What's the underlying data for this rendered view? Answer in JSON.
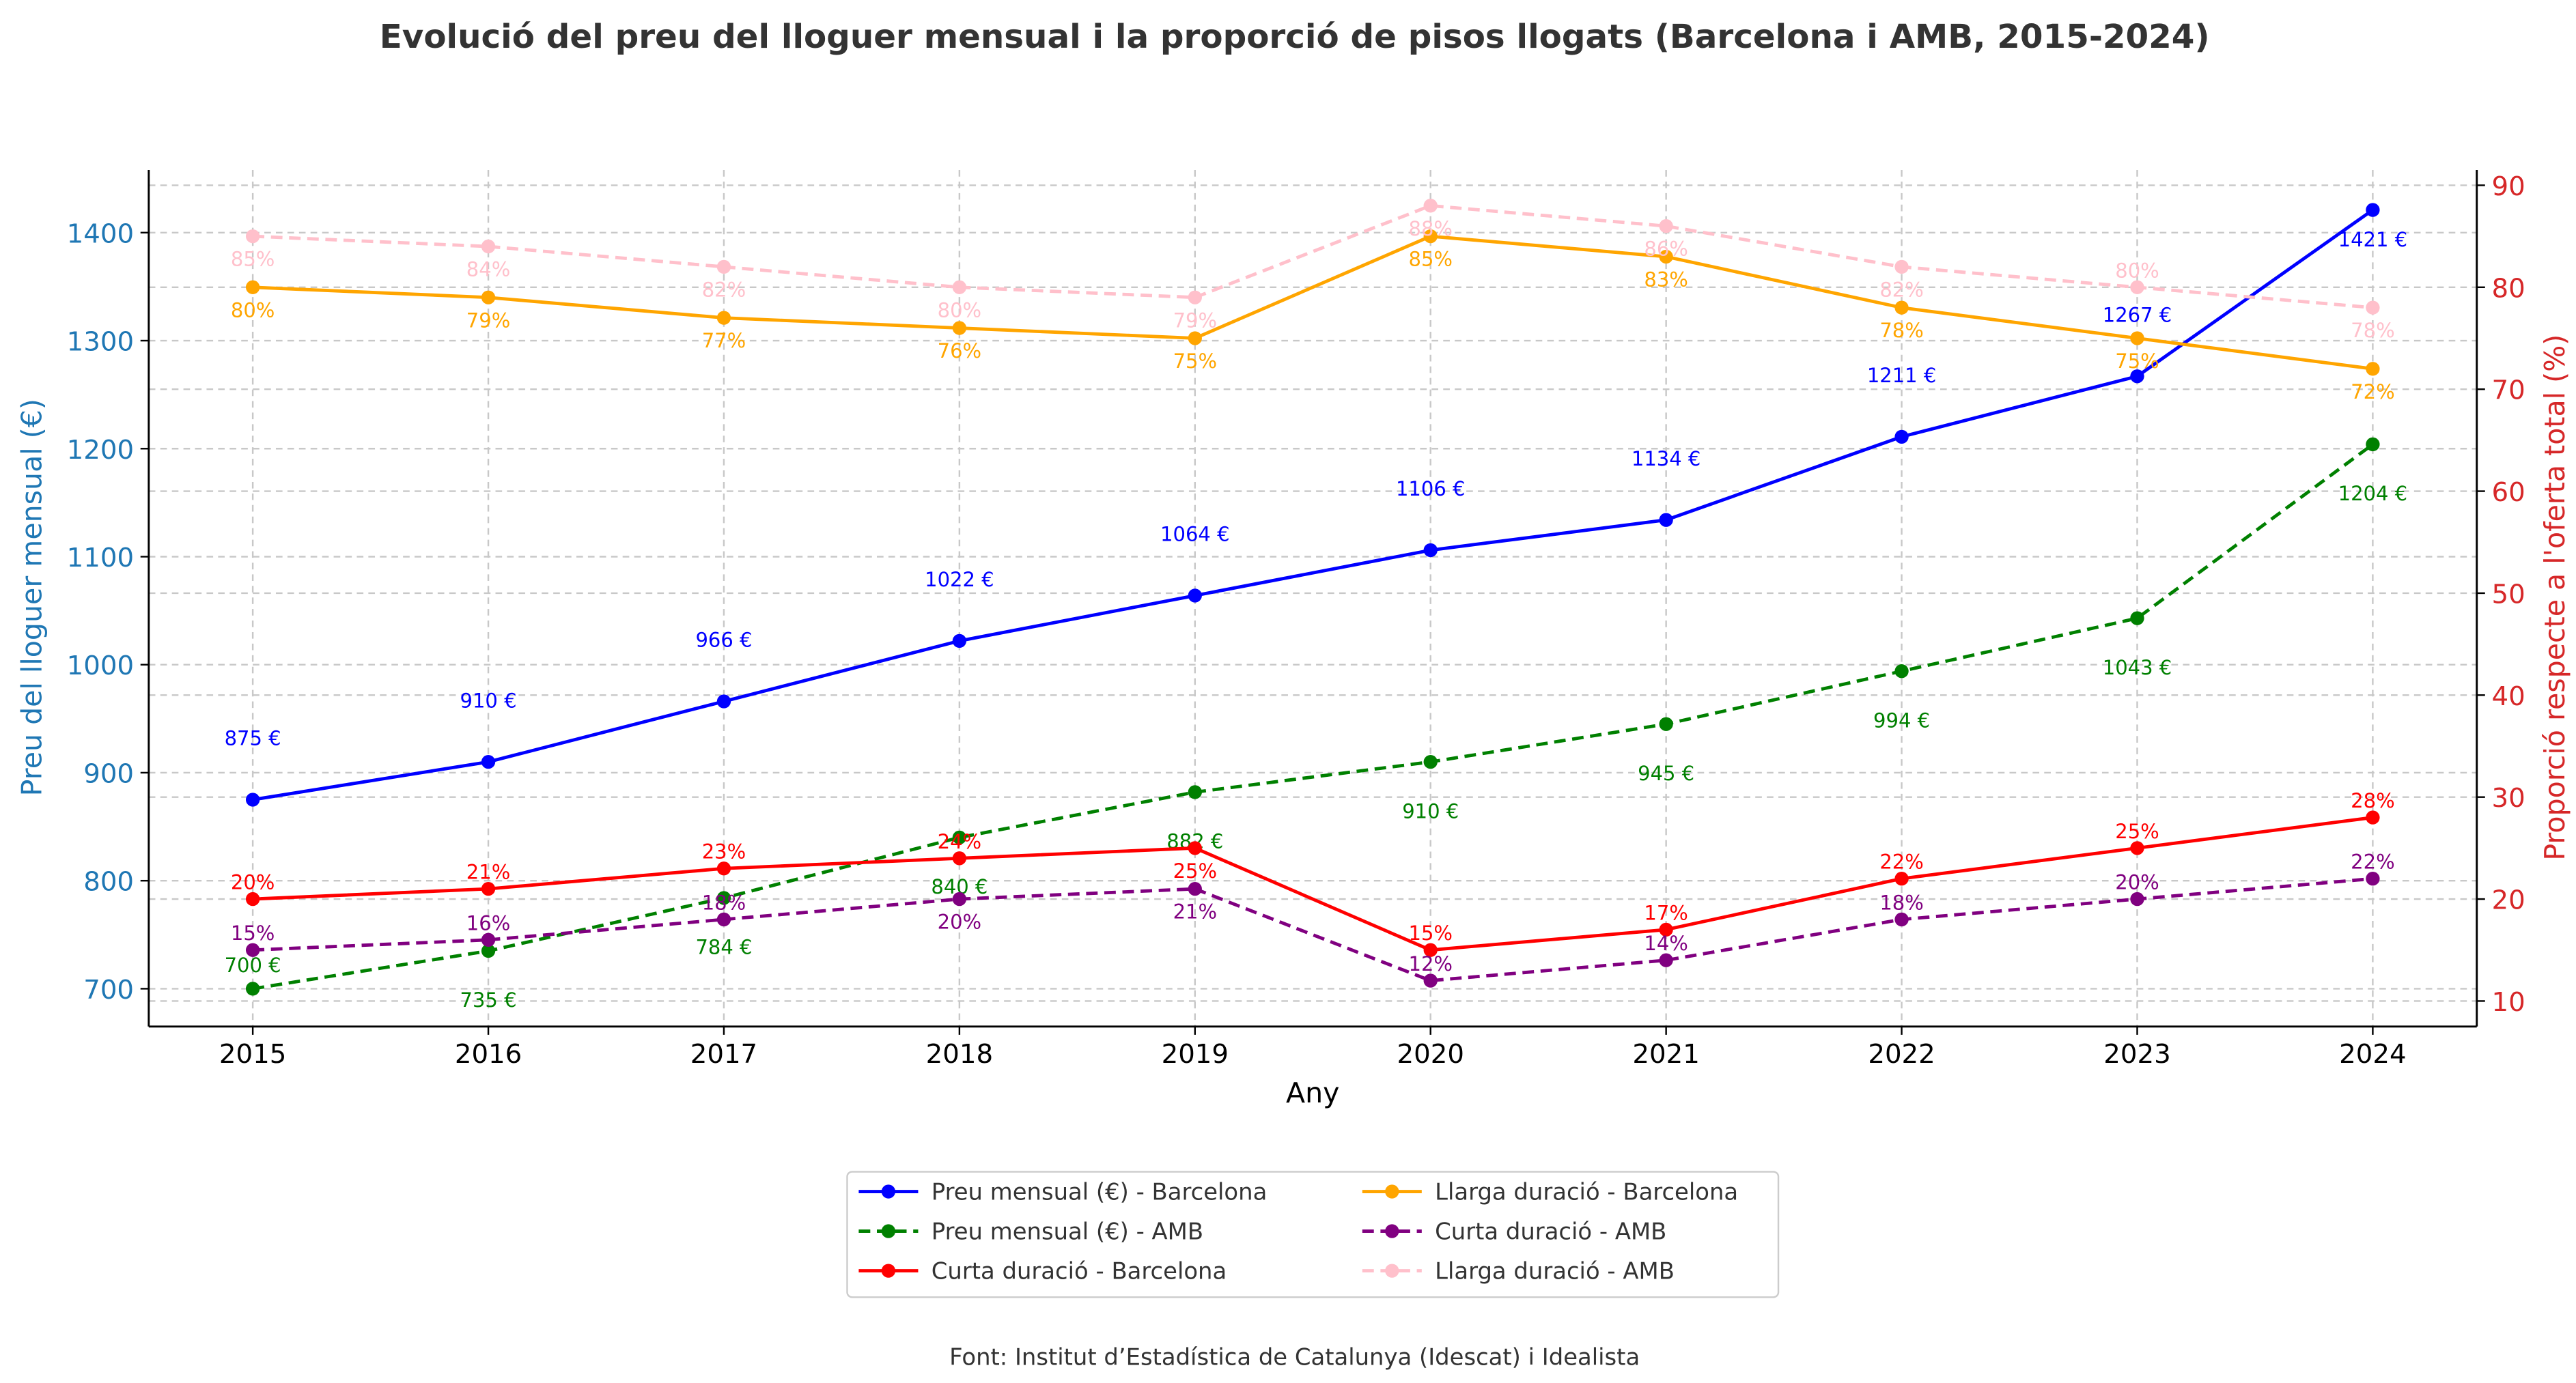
{
  "chart_data": {
    "type": "line",
    "title": "Evolució del preu del lloguer mensual i la proporció de pisos llogats (Barcelona i AMB, 2015-2024)",
    "xlabel": "Any",
    "ylabel_left": "Preu del lloguer mensual (€)",
    "ylabel_right": "Proporció respecte a l'oferta total (%)",
    "x": [
      2015,
      2016,
      2017,
      2018,
      2019,
      2020,
      2021,
      2022,
      2023,
      2024
    ],
    "ylim_left": [
      665,
      1458
    ],
    "ylim_right": [
      7.5,
      91.5
    ],
    "yticks_left": [
      700,
      800,
      900,
      1000,
      1100,
      1200,
      1300,
      1400
    ],
    "yticks_right": [
      10,
      20,
      30,
      40,
      50,
      60,
      70,
      80,
      90
    ],
    "grid": true,
    "legend_position": "bottom-center",
    "left_axis_color": "#1f77b4",
    "right_axis_color": "#d62728",
    "series": [
      {
        "name": "Preu mensual (€) - Barcelona",
        "axis": "left",
        "color": "#0000ff",
        "dashed": false,
        "label_suffix": " €",
        "label_pos": "above",
        "values": [
          875,
          910,
          966,
          1022,
          1064,
          1106,
          1134,
          1211,
          1267,
          1421
        ]
      },
      {
        "name": "Preu mensual (€) - AMB",
        "axis": "left",
        "color": "#008000",
        "dashed": true,
        "label_suffix": " €",
        "label_pos": "below",
        "values": [
          700,
          735,
          784,
          840,
          882,
          910,
          945,
          994,
          1043,
          1204
        ]
      },
      {
        "name": "Curta duració - Barcelona",
        "axis": "right",
        "color": "#ff0000",
        "dashed": false,
        "label_suffix": "%",
        "label_pos": "above",
        "values": [
          20,
          21,
          23,
          24,
          25,
          15,
          17,
          22,
          25,
          28
        ]
      },
      {
        "name": "Llarga duració - Barcelona",
        "axis": "right",
        "color": "#ffa500",
        "dashed": false,
        "label_suffix": "%",
        "label_pos": "below",
        "values": [
          80,
          79,
          77,
          76,
          75,
          85,
          83,
          78,
          75,
          72
        ]
      },
      {
        "name": "Curta duració - AMB",
        "axis": "right",
        "color": "#800080",
        "dashed": true,
        "label_suffix": "%",
        "label_pos": "above",
        "values": [
          15,
          16,
          18,
          20,
          21,
          12,
          14,
          18,
          20,
          22
        ]
      },
      {
        "name": "Llarga duració - AMB",
        "axis": "right",
        "color": "#ffc0cb",
        "dashed": true,
        "label_suffix": "%",
        "label_pos": "below",
        "values": [
          85,
          84,
          82,
          80,
          79,
          88,
          86,
          82,
          80,
          78
        ]
      }
    ],
    "source": "Font: Institut d’Estadística de Catalunya (Idescat) i Idealista"
  }
}
